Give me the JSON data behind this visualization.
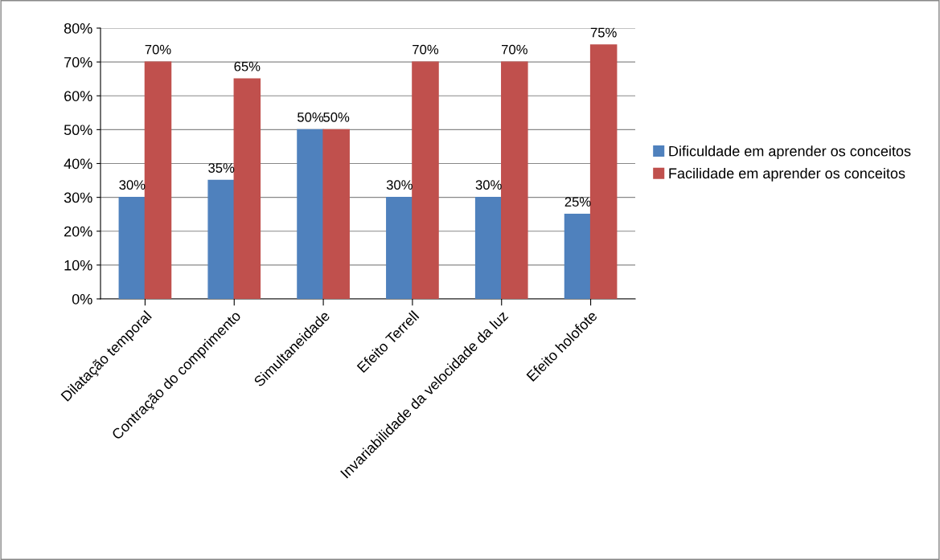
{
  "chart_data": {
    "type": "bar",
    "categories": [
      "Dilatação temporal",
      "Contração do comprimento",
      "Simultaneidade",
      "Efeito Terrell",
      "Invariabilidade da velocidade da luz",
      "Efeito holofote"
    ],
    "series": [
      {
        "name": "Dificuldade em aprender os conceitos",
        "color": "#4f81bd",
        "values": [
          30,
          35,
          50,
          30,
          30,
          25
        ],
        "value_labels": [
          "30%",
          "35%",
          "50%",
          "30%",
          "30%",
          "25%"
        ]
      },
      {
        "name": "Facilidade em aprender os conceitos",
        "color": "#c0504d",
        "values": [
          70,
          65,
          50,
          70,
          70,
          75
        ],
        "value_labels": [
          "70%",
          "65%",
          "50%",
          "70%",
          "70%",
          "75%"
        ]
      }
    ],
    "ylim": [
      0,
      80
    ],
    "yticks": [
      {
        "value": 0,
        "label": "0%"
      },
      {
        "value": 10,
        "label": "10%"
      },
      {
        "value": 20,
        "label": "20%"
      },
      {
        "value": 30,
        "label": "30%"
      },
      {
        "value": 40,
        "label": "40%"
      },
      {
        "value": 50,
        "label": "50%"
      },
      {
        "value": 60,
        "label": "60%"
      },
      {
        "value": 70,
        "label": "70%"
      },
      {
        "value": 80,
        "label": "80%"
      }
    ],
    "grid": "y",
    "legend": "right"
  }
}
